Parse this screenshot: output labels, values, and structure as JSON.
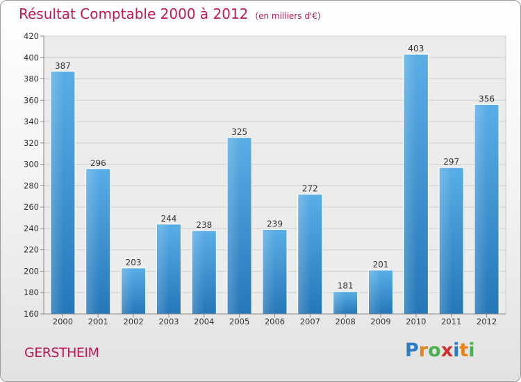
{
  "title": "Résultat Comptable 2000 à 2012",
  "subtitle": "(en milliers d'€)",
  "commune": "GERSTHEIM",
  "brand": {
    "letters": [
      "P",
      "r",
      "o",
      "x",
      "i",
      "t",
      "i"
    ],
    "colors": [
      "#2e7bc4",
      "#e8841b",
      "#4caf50",
      "#d32f2f",
      "#2e7bc4",
      "#e8841b",
      "#4caf50"
    ]
  },
  "colors": {
    "bar_light": "#5aaee6",
    "bar_dark": "#2577b8",
    "title": "#c2185b"
  },
  "chart_data": {
    "type": "bar",
    "categories": [
      "2000",
      "2001",
      "2002",
      "2003",
      "2004",
      "2005",
      "2006",
      "2007",
      "2008",
      "2009",
      "2010",
      "2011",
      "2012"
    ],
    "values": [
      387,
      296,
      203,
      244,
      238,
      325,
      239,
      272,
      181,
      201,
      403,
      297,
      356
    ],
    "ylim": [
      160,
      420
    ],
    "yticks": [
      160,
      180,
      200,
      220,
      240,
      260,
      280,
      300,
      320,
      340,
      360,
      380,
      400,
      420
    ],
    "grid": true,
    "xlabel": "",
    "ylabel": ""
  }
}
